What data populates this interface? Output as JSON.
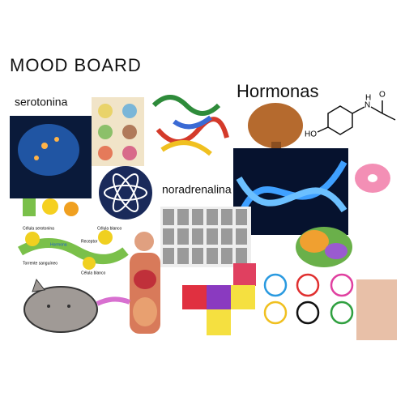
{
  "title": "MOOD BOARD",
  "labels": {
    "serotonina": "serotonina",
    "hormonas": "Hormonas",
    "noradrenalina": "noradrenalina"
  },
  "molecule": {
    "ho": "HO",
    "nh": "N",
    "h": "H",
    "o": "O"
  },
  "diagram": {
    "cell_serotonin": "Célula serotonina",
    "target_cell": "Célula blanco",
    "receptor": "Receptor",
    "hormone": "Hormona",
    "bloodstream": "Torrente sanguíneo",
    "target_cell_2": "Célula blanco"
  }
}
